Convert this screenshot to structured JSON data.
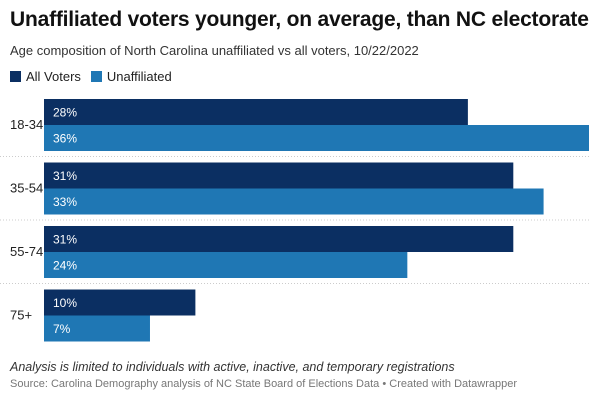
{
  "title": "Unaffiliated voters younger, on average, than NC electorate",
  "subtitle": "Age composition of North Carolina unaffiliated vs all voters, 10/22/2022",
  "note": "Analysis is limited to individuals with active, inactive, and temporary registrations",
  "source": "Source: Carolina Demography analysis of NC State Board of Elections Data • Created with Datawrapper",
  "chart_data": {
    "type": "bar",
    "orientation": "horizontal",
    "categories": [
      "18-34",
      "35-54",
      "55-74",
      "75+"
    ],
    "series": [
      {
        "name": "All Voters",
        "color": "#0b2f62",
        "values": [
          28,
          31,
          31,
          10
        ]
      },
      {
        "name": "Unaffiliated",
        "color": "#1f77b4",
        "values": [
          36,
          33,
          24,
          7
        ]
      }
    ],
    "value_suffix": "%",
    "xlim": [
      0,
      36
    ],
    "grid": false,
    "legend_position": "top-left"
  }
}
